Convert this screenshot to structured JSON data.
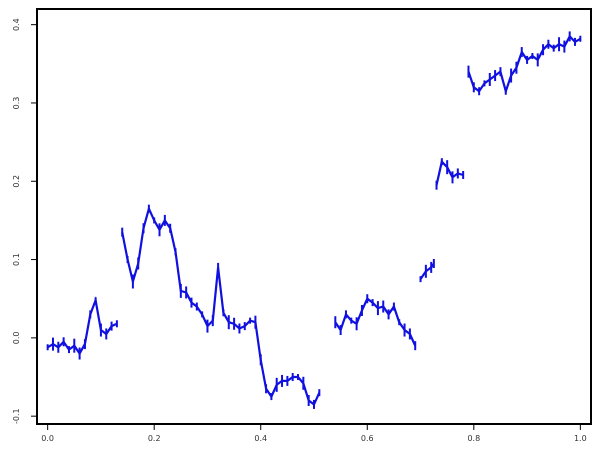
{
  "chart_data": {
    "type": "line",
    "title": "",
    "xlabel": "",
    "ylabel": "",
    "xlim": [
      -0.02,
      1.02
    ],
    "ylim": [
      -0.11,
      0.42
    ],
    "grid": false,
    "legend": "none",
    "x_ticks": [
      "0.0",
      "0.2",
      "0.4",
      "0.6",
      "0.8",
      "1.0"
    ],
    "y_ticks": [
      "-0.1",
      "0.0",
      "0.1",
      "0.2",
      "0.3",
      "0.4"
    ],
    "line_color": "#1010e0",
    "series": [
      {
        "segments": [
          [
            [
              0.0,
              -0.012
            ],
            [
              0.01,
              -0.008
            ],
            [
              0.02,
              -0.012
            ],
            [
              0.03,
              -0.005
            ],
            [
              0.04,
              -0.015
            ],
            [
              0.05,
              -0.01
            ],
            [
              0.06,
              -0.02
            ],
            [
              0.07,
              -0.008
            ],
            [
              0.08,
              0.03
            ],
            [
              0.09,
              0.048
            ],
            [
              0.1,
              0.01
            ],
            [
              0.11,
              0.005
            ],
            [
              0.12,
              0.015
            ],
            [
              0.13,
              0.018
            ]
          ],
          [
            [
              0.14,
              0.135
            ],
            [
              0.15,
              0.1
            ],
            [
              0.16,
              0.072
            ],
            [
              0.17,
              0.095
            ],
            [
              0.18,
              0.14
            ],
            [
              0.19,
              0.165
            ],
            [
              0.2,
              0.15
            ],
            [
              0.21,
              0.138
            ],
            [
              0.22,
              0.15
            ],
            [
              0.23,
              0.14
            ],
            [
              0.24,
              0.11
            ],
            [
              0.25,
              0.06
            ],
            [
              0.26,
              0.058
            ],
            [
              0.27,
              0.045
            ],
            [
              0.28,
              0.04
            ],
            [
              0.29,
              0.03
            ],
            [
              0.3,
              0.015
            ],
            [
              0.31,
              0.022
            ],
            [
              0.32,
              0.09
            ],
            [
              0.33,
              0.032
            ],
            [
              0.34,
              0.02
            ],
            [
              0.35,
              0.018
            ],
            [
              0.36,
              0.012
            ],
            [
              0.37,
              0.015
            ],
            [
              0.38,
              0.022
            ],
            [
              0.39,
              0.02
            ],
            [
              0.4,
              -0.028
            ],
            [
              0.41,
              -0.065
            ],
            [
              0.42,
              -0.075
            ],
            [
              0.43,
              -0.06
            ],
            [
              0.44,
              -0.055
            ],
            [
              0.45,
              -0.055
            ],
            [
              0.46,
              -0.05
            ],
            [
              0.47,
              -0.05
            ],
            [
              0.48,
              -0.058
            ],
            [
              0.49,
              -0.08
            ],
            [
              0.5,
              -0.085
            ],
            [
              0.51,
              -0.07
            ]
          ],
          [
            [
              0.54,
              0.02
            ],
            [
              0.55,
              0.01
            ],
            [
              0.56,
              0.03
            ],
            [
              0.57,
              0.022
            ],
            [
              0.58,
              0.018
            ],
            [
              0.59,
              0.035
            ],
            [
              0.6,
              0.05
            ],
            [
              0.61,
              0.045
            ],
            [
              0.62,
              0.038
            ],
            [
              0.63,
              0.04
            ],
            [
              0.64,
              0.03
            ],
            [
              0.65,
              0.04
            ],
            [
              0.66,
              0.02
            ],
            [
              0.67,
              0.01
            ],
            [
              0.68,
              0.005
            ],
            [
              0.69,
              -0.01
            ]
          ],
          [
            [
              0.7,
              0.075
            ],
            [
              0.71,
              0.085
            ],
            [
              0.72,
              0.09
            ],
            [
              0.725,
              0.095
            ]
          ],
          [
            [
              0.73,
              0.195
            ],
            [
              0.74,
              0.225
            ],
            [
              0.75,
              0.218
            ],
            [
              0.76,
              0.205
            ],
            [
              0.77,
              0.21
            ],
            [
              0.78,
              0.208
            ]
          ],
          [
            [
              0.79,
              0.34
            ],
            [
              0.8,
              0.32
            ],
            [
              0.81,
              0.315
            ],
            [
              0.82,
              0.325
            ],
            [
              0.83,
              0.33
            ],
            [
              0.84,
              0.335
            ],
            [
              0.85,
              0.34
            ],
            [
              0.86,
              0.315
            ],
            [
              0.87,
              0.335
            ],
            [
              0.88,
              0.345
            ],
            [
              0.89,
              0.365
            ],
            [
              0.9,
              0.355
            ],
            [
              0.91,
              0.36
            ],
            [
              0.92,
              0.355
            ],
            [
              0.93,
              0.368
            ],
            [
              0.94,
              0.375
            ],
            [
              0.95,
              0.37
            ],
            [
              0.96,
              0.375
            ],
            [
              0.97,
              0.372
            ],
            [
              0.98,
              0.385
            ],
            [
              0.99,
              0.378
            ],
            [
              1.0,
              0.382
            ]
          ]
        ]
      }
    ]
  }
}
